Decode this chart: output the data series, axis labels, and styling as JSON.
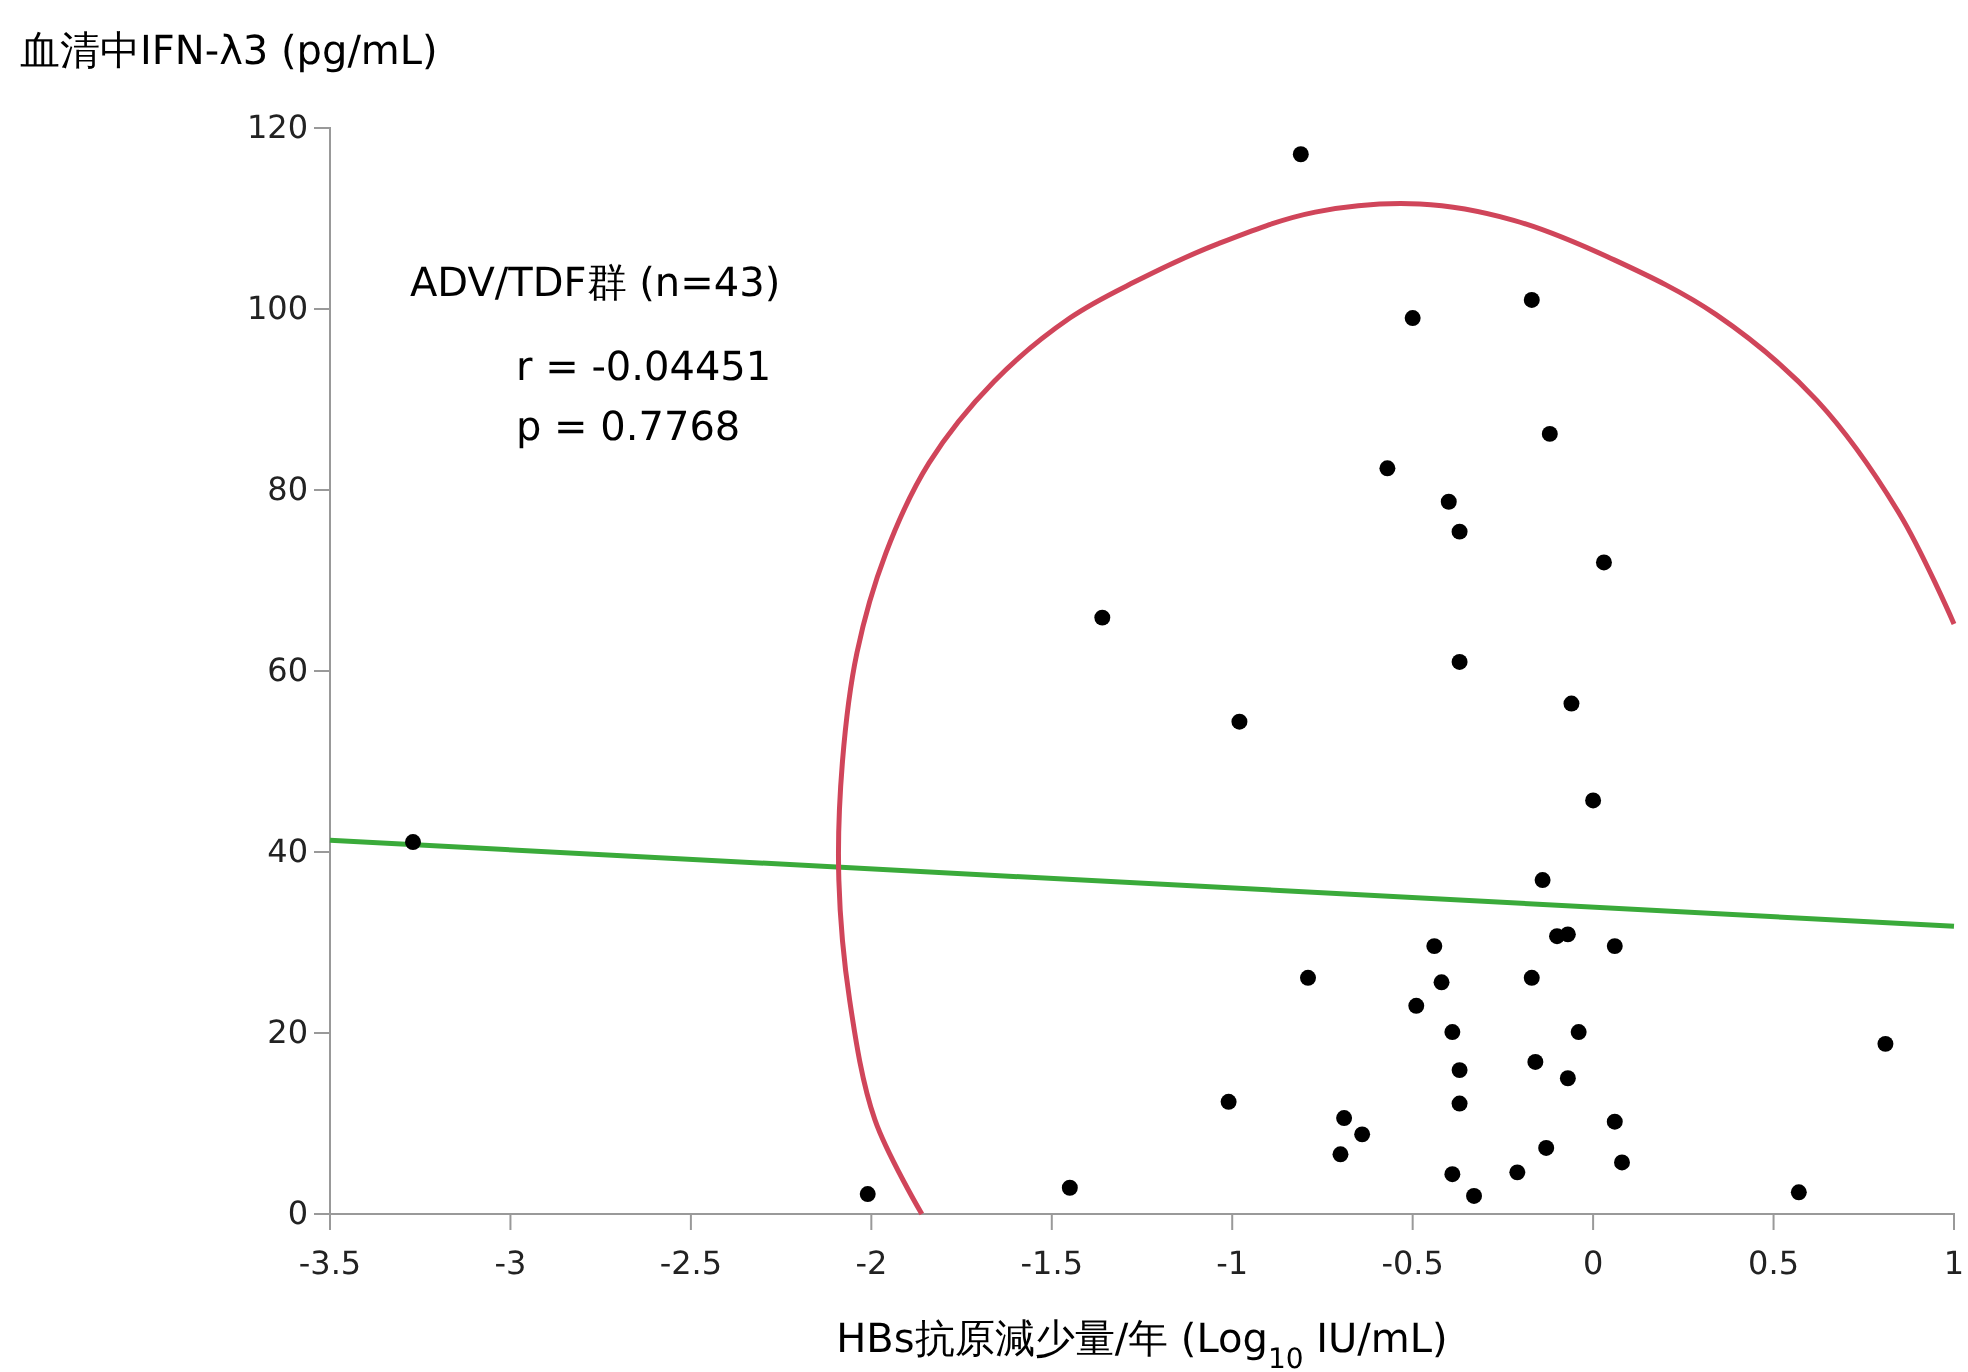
{
  "chart_data": {
    "type": "scatter",
    "xlabel": "HBs抗原減少量/年 (Log$_{10}$ IU/mL)",
    "ylabel": "血清中IFN-λ3 (pg/mL)",
    "annotations": [
      "ADV/TDF群 (n=43)",
      "r = -0.04451",
      "p = 0.7768"
    ],
    "xlim": [
      -3.5,
      1
    ],
    "xticks": [
      -3.5,
      -3,
      -2.5,
      -2,
      -1.5,
      -1,
      -0.5,
      0,
      0.5,
      1
    ],
    "ylim": [
      0,
      120
    ],
    "yticks": [
      0,
      20,
      40,
      60,
      80,
      100,
      120
    ],
    "grid": false,
    "line_style": "solid",
    "series": [
      {
        "marker": "circle",
        "color": "#000000",
        "x": [
          -3.27,
          -0.81,
          -0.5,
          -0.17,
          -0.12,
          -0.57,
          -0.4,
          -0.37,
          0.03,
          -1.36,
          -0.37,
          -0.06,
          -0.98,
          0.0,
          -0.14,
          -0.44,
          -0.42,
          -0.1,
          -0.07,
          0.06,
          -0.79,
          -0.17,
          -0.49,
          -0.39,
          -0.04,
          0.81,
          -0.37,
          -0.16,
          -0.07,
          -1.01,
          -0.37,
          -0.69,
          -0.64,
          -0.7,
          0.06,
          -0.13,
          0.08,
          -0.21,
          -0.39,
          -0.33,
          0.57,
          -1.45,
          -2.01
        ],
        "values": [
          41.1,
          117.1,
          99,
          101,
          86.2,
          82.4,
          78.7,
          75.4,
          72,
          65.9,
          61,
          56.4,
          54.4,
          45.7,
          36.9,
          29.6,
          25.6,
          30.7,
          30.9,
          29.6,
          26.1,
          26.1,
          23,
          20.1,
          20.1,
          18.8,
          15.9,
          16.8,
          15,
          12.4,
          12.2,
          10.6,
          8.8,
          6.6,
          10.2,
          7.3,
          5.7,
          4.6,
          4.4,
          2,
          2.4,
          2.9,
          2.2
        ]
      },
      {
        "type": "line",
        "color": "#3aaa3a",
        "x": [
          -3.5,
          1
        ],
        "values": [
          41.3,
          31.8
        ]
      },
      {
        "type": "line",
        "color": "#d0455a",
        "x": [
          -1.86,
          -1.99,
          -2.06,
          -2.09,
          -2.08,
          -2.04,
          -1.96,
          -1.84,
          -1.66,
          -1.45,
          -1.27,
          -1.04,
          -0.77,
          -0.48,
          -0.22,
          0.06,
          0.34,
          0.62,
          0.85,
          1
        ],
        "values": [
          0,
          10.4,
          23.6,
          36.9,
          50,
          62,
          73,
          83,
          92,
          99,
          103,
          107.2,
          110.7,
          111.6,
          109.8,
          105.4,
          99.4,
          89.9,
          77.3,
          65.2
        ]
      }
    ]
  }
}
